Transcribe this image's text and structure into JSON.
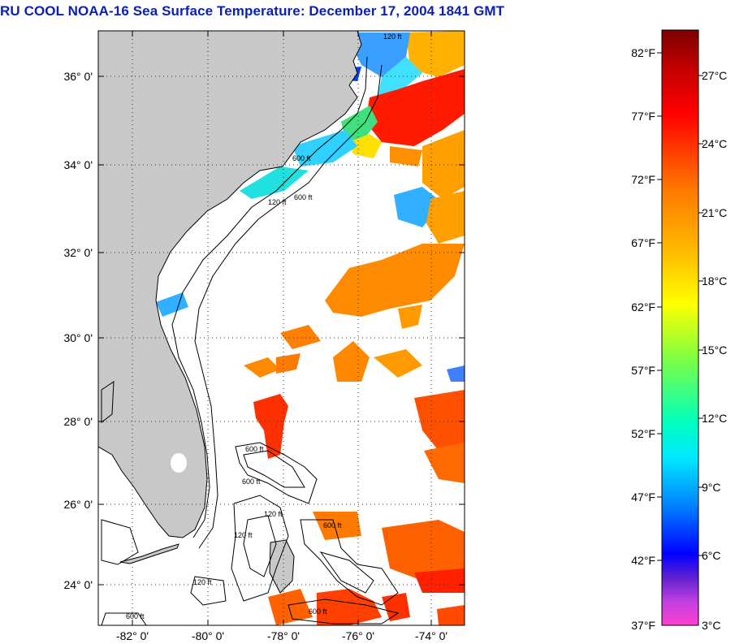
{
  "title": "RU COOL  NOAA-16  Sea Surface Temperature:  December 17, 2004 1841 GMT",
  "map": {
    "lat_labels": [
      "36° 0'",
      "34° 0'",
      "32° 0'",
      "30° 0'",
      "28° 0'",
      "26° 0'",
      "24° 0'"
    ],
    "lon_labels": [
      "-82° 0'",
      "-80° 0'",
      "-78° 0'",
      "-76° 0'",
      "-74° 0'"
    ],
    "contour_labels": [
      "120 ft",
      "600 ft"
    ],
    "colors": {
      "land": "#c8c8c8",
      "frame": "#000000",
      "grid": "#333333"
    }
  },
  "colorbar": {
    "fahrenheit_labels": [
      "82°F",
      "77°F",
      "72°F",
      "67°F",
      "62°F",
      "57°F",
      "52°F",
      "47°F",
      "42°F",
      "37°F"
    ],
    "celsius_labels": [
      "27°C",
      "24°C",
      "21°C",
      "18°C",
      "15°C",
      "12°C",
      "9°C",
      "6°C",
      "3°C"
    ]
  }
}
